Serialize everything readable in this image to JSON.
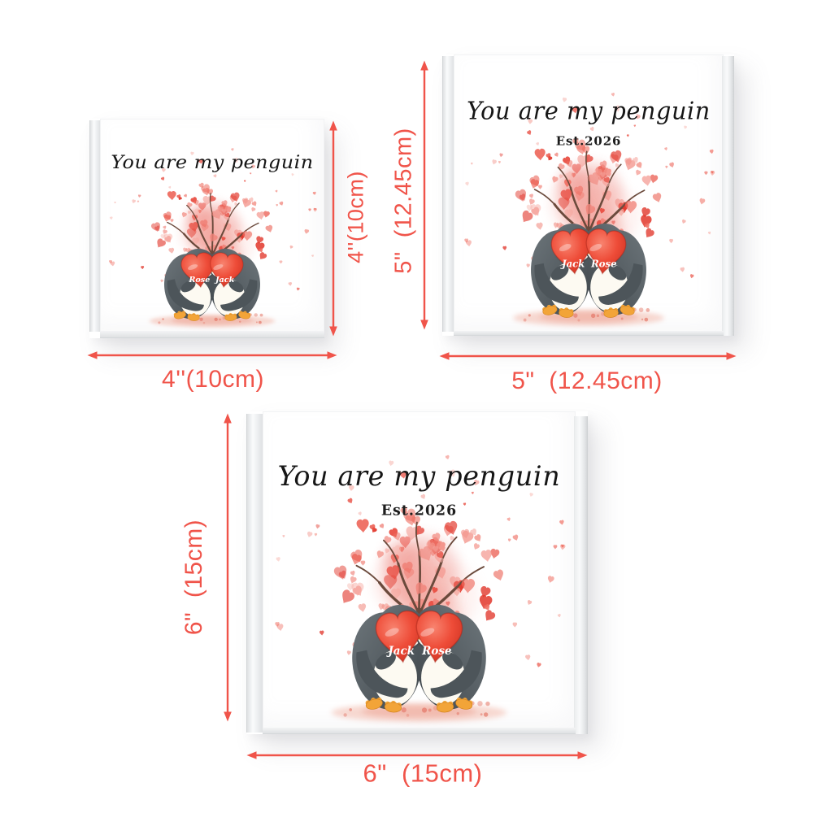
{
  "colors": {
    "accent": "#f0544a",
    "heart_red": "#e8473a",
    "tree_pink": "#f08379",
    "penguin_gray": "#4d555a",
    "beak_orange": "#f2a438"
  },
  "plaques": [
    {
      "size_name": "4-inch",
      "title": "You are my penguin",
      "est": "",
      "heart_names": [
        "Rose",
        "Jack"
      ],
      "width_label": "4''(10cm)",
      "height_label": "4''(10cm)"
    },
    {
      "size_name": "5-inch",
      "title": "You are my penguin",
      "est": "Est.2026",
      "heart_names": [
        "Jack",
        "Rose"
      ],
      "width_label": "5\"  (12.45cm)",
      "height_label": "5\"  (12.45cm)"
    },
    {
      "size_name": "6-inch",
      "title": "You are my penguin",
      "est": "Est.2026",
      "heart_names": [
        "Jack",
        "Rose"
      ],
      "width_label": "6\"  (15cm)",
      "height_label": "6\"  (15cm)"
    }
  ]
}
